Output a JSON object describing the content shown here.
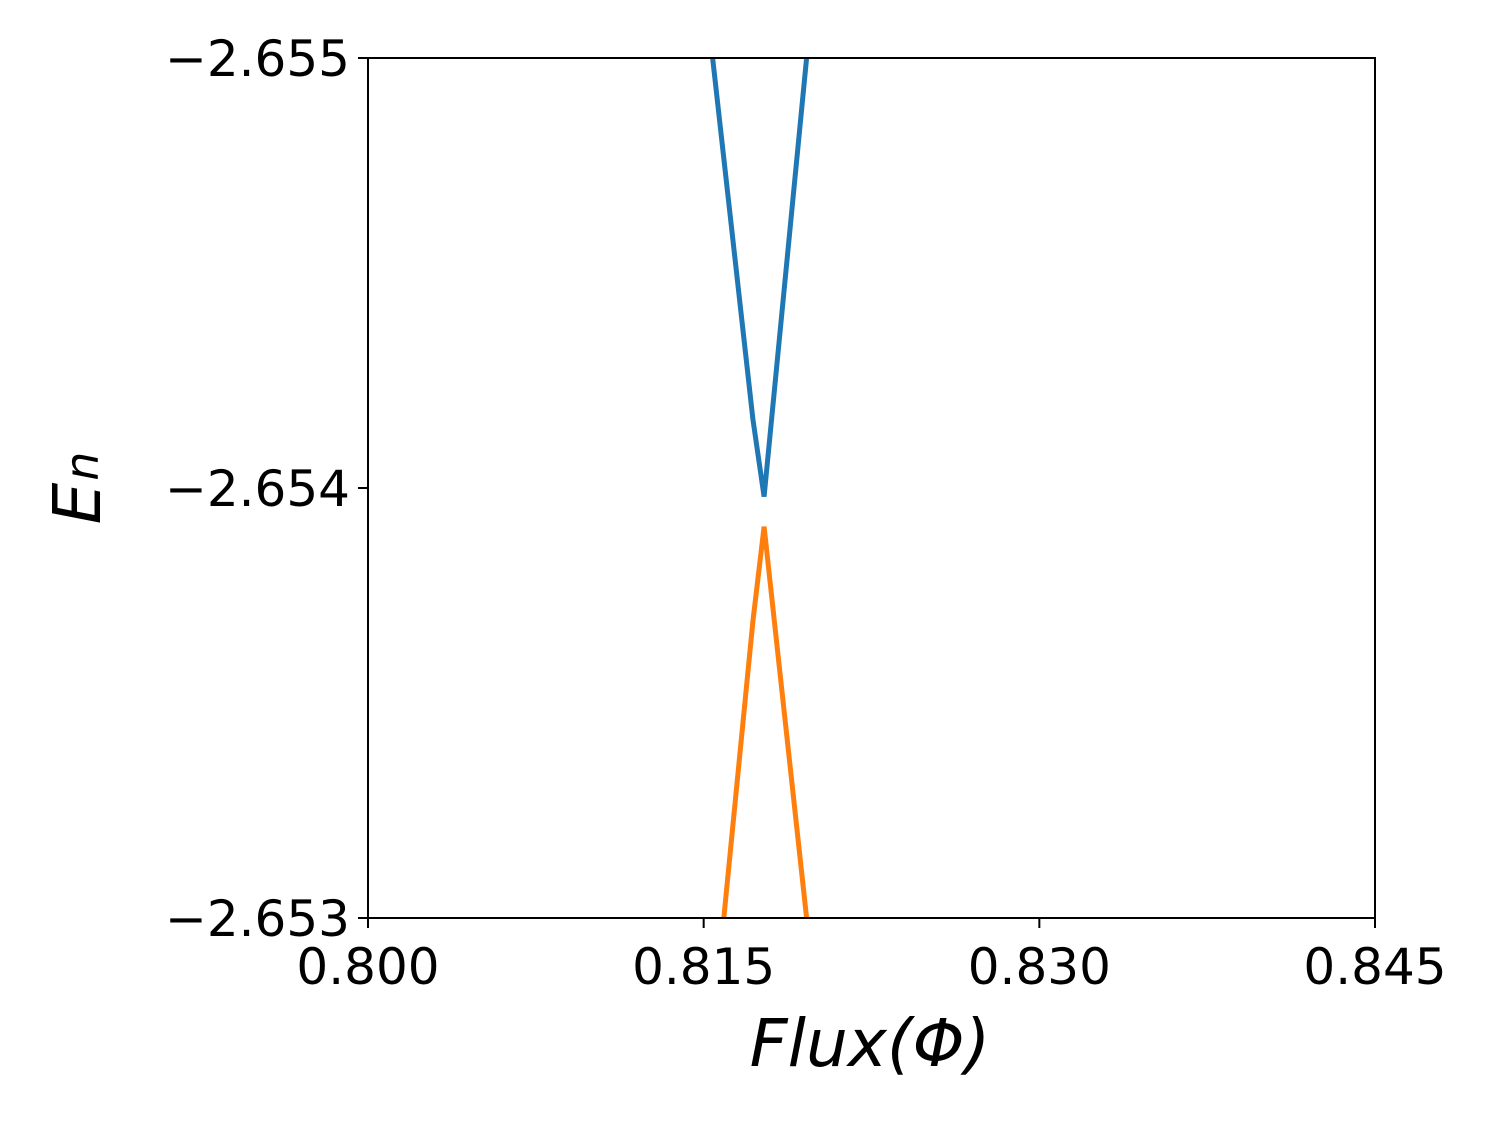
{
  "chart_data": {
    "type": "line",
    "xlabel": "Flux(Φ)",
    "ylabel": "E",
    "ylabel_subscript": "n",
    "xlim": [
      0.8,
      0.845
    ],
    "xticks": [
      {
        "value": 0.8,
        "label": "0.800"
      },
      {
        "value": 0.815,
        "label": "0.815"
      },
      {
        "value": 0.83,
        "label": "0.830"
      },
      {
        "value": 0.845,
        "label": "0.845"
      }
    ],
    "ylim": [
      -2.653,
      -2.655
    ],
    "yticks": [
      {
        "value": -2.655,
        "label": "−2.655"
      },
      {
        "value": -2.654,
        "label": "−2.654"
      },
      {
        "value": -2.653,
        "label": "−2.653"
      }
    ],
    "series": [
      {
        "color": "#1f77b4",
        "x": [
          0.8154,
          0.8172,
          0.8177,
          0.8196
        ],
        "values": [
          -2.655,
          -2.65416,
          -2.65398,
          -2.655
        ]
      },
      {
        "color": "#ff7f0e",
        "x": [
          0.8159,
          0.8172,
          0.8177,
          0.8196
        ],
        "values": [
          -2.653,
          -2.65369,
          -2.65391,
          -2.653
        ]
      }
    ]
  }
}
